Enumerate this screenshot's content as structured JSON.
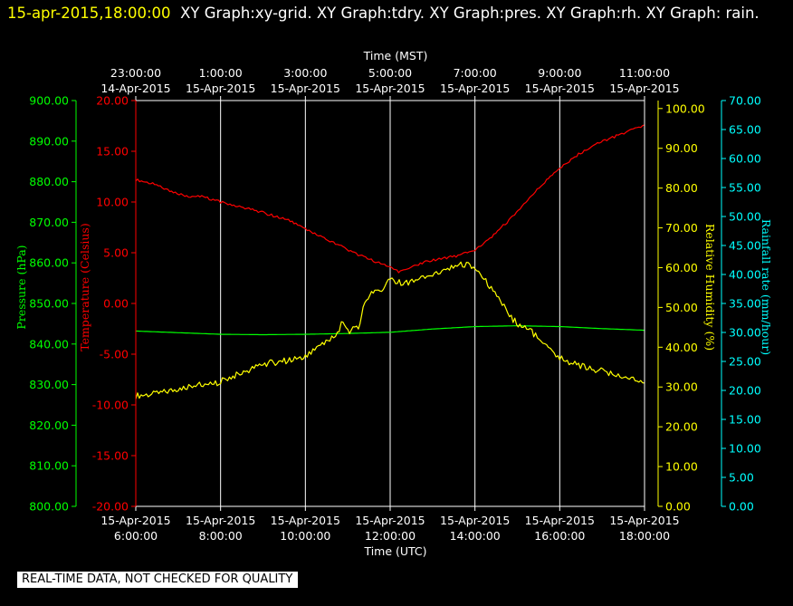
{
  "header": {
    "timestamp": "15-apr-2015,18:00:00",
    "graphs": "XY Graph:xy-grid.  XY Graph:tdry.  XY Graph:pres.  XY Graph:rh.  XY Graph: rain."
  },
  "footer_note": "REAL-TIME DATA, NOT CHECKED FOR QUALITY",
  "colors": {
    "background": "#000000",
    "temperature": "#ff0000",
    "pressure": "#00ff00",
    "humidity": "#ffff00",
    "rainfall": "#00ffff",
    "grid": "#ffffff"
  },
  "chart_data": {
    "type": "line",
    "grid": true,
    "x_top": {
      "label": "Time (MST)",
      "ticks": [
        [
          "23:00:00",
          "14-Apr-2015"
        ],
        [
          "1:00:00",
          "15-Apr-2015"
        ],
        [
          "3:00:00",
          "15-Apr-2015"
        ],
        [
          "5:00:00",
          "15-Apr-2015"
        ],
        [
          "7:00:00",
          "15-Apr-2015"
        ],
        [
          "9:00:00",
          "15-Apr-2015"
        ],
        [
          "11:00:00",
          "15-Apr-2015"
        ]
      ]
    },
    "x_bottom": {
      "label": "Time (UTC)",
      "ticks": [
        [
          "15-Apr-2015",
          "6:00:00"
        ],
        [
          "15-Apr-2015",
          "8:00:00"
        ],
        [
          "15-Apr-2015",
          "10:00:00"
        ],
        [
          "15-Apr-2015",
          "12:00:00"
        ],
        [
          "15-Apr-2015",
          "14:00:00"
        ],
        [
          "15-Apr-2015",
          "16:00:00"
        ],
        [
          "15-Apr-2015",
          "18:00:00"
        ]
      ],
      "tick_hours_utc": [
        6,
        8,
        10,
        12,
        14,
        16,
        18
      ],
      "range_hours_utc": [
        6,
        18
      ]
    },
    "axes": {
      "pressure": {
        "label": "Pressure (hPa)",
        "range": [
          800,
          900
        ],
        "ticks": [
          "800.00",
          "810.00",
          "820.00",
          "830.00",
          "840.00",
          "850.00",
          "860.00",
          "870.00",
          "880.00",
          "890.00",
          "900.00"
        ]
      },
      "temperature": {
        "label": "Temperature (Celsius)",
        "range": [
          -20,
          20
        ],
        "ticks": [
          "-20.00",
          "-15.00",
          "-10.00",
          "-5.00",
          "0.00",
          "5.00",
          "10.00",
          "15.00",
          "20.00"
        ]
      },
      "humidity": {
        "label": "Relative Humidity (%)",
        "range": [
          0,
          102
        ],
        "ticks": [
          "0.00",
          "10.00",
          "20.00",
          "30.00",
          "40.00",
          "50.00",
          "60.00",
          "70.00",
          "80.00",
          "90.00",
          "100.00"
        ]
      },
      "rainfall": {
        "label": "Rainfall rate (mm/hour)",
        "range": [
          0,
          70
        ],
        "ticks": [
          "0.00",
          "5.00",
          "10.00",
          "15.00",
          "20.00",
          "25.00",
          "30.00",
          "35.00",
          "40.00",
          "45.00",
          "50.00",
          "55.00",
          "60.00",
          "65.00",
          "70.00"
        ]
      }
    },
    "series": [
      {
        "name": "tdry",
        "axis": "temperature",
        "color": "#ff0000",
        "x_hours_utc": [
          6.0,
          6.4,
          6.8,
          7.2,
          7.6,
          8.0,
          8.4,
          8.8,
          9.2,
          9.6,
          10.0,
          10.4,
          10.8,
          11.2,
          11.6,
          12.0,
          12.2,
          12.4,
          12.8,
          13.2,
          13.6,
          14.0,
          14.4,
          14.8,
          15.2,
          15.6,
          16.0,
          16.4,
          16.8,
          17.2,
          17.6,
          18.0
        ],
        "values": [
          12.2,
          11.8,
          11.1,
          10.6,
          10.5,
          10.0,
          9.6,
          9.2,
          8.7,
          8.2,
          7.3,
          6.5,
          5.7,
          4.9,
          4.2,
          3.6,
          3.1,
          3.3,
          4.1,
          4.4,
          4.7,
          5.3,
          6.6,
          8.2,
          10.0,
          11.8,
          13.3,
          14.6,
          15.6,
          16.3,
          16.9,
          17.6
        ]
      },
      {
        "name": "pres",
        "axis": "pressure",
        "color": "#00ff00",
        "x_hours_utc": [
          6.0,
          7.0,
          8.0,
          9.0,
          10.0,
          11.0,
          12.0,
          13.0,
          14.0,
          15.0,
          16.0,
          17.0,
          18.0
        ],
        "values": [
          843.2,
          842.8,
          842.4,
          842.3,
          842.4,
          842.6,
          842.9,
          843.7,
          844.3,
          844.5,
          844.3,
          843.8,
          843.4
        ]
      },
      {
        "name": "rh",
        "axis": "humidity",
        "color": "#ffff00",
        "x_hours_utc": [
          6.0,
          6.5,
          7.0,
          7.5,
          7.8,
          8.0,
          8.5,
          9.0,
          9.5,
          10.0,
          10.4,
          10.8,
          10.85,
          11.0,
          11.25,
          11.4,
          11.6,
          11.8,
          12.0,
          12.3,
          12.6,
          13.0,
          13.4,
          13.8,
          14.0,
          14.3,
          14.6,
          14.9,
          15.1,
          15.3,
          15.6,
          16.0,
          16.4,
          16.8,
          17.2,
          17.6,
          18.0
        ],
        "values": [
          27.8,
          28.3,
          29.5,
          31.0,
          30.5,
          31.5,
          33.5,
          35.8,
          36.5,
          37.5,
          40.5,
          43.5,
          46.0,
          44.0,
          45.0,
          51.0,
          54.0,
          53.5,
          57.0,
          56.0,
          56.5,
          58.5,
          60.0,
          61.0,
          60.0,
          56.0,
          51.5,
          47.0,
          45.0,
          44.5,
          40.5,
          37.5,
          35.5,
          34.5,
          33.5,
          32.5,
          31.0
        ]
      },
      {
        "name": "rain",
        "axis": "rainfall",
        "color": "#00ffff",
        "x_hours_utc": [],
        "values": []
      }
    ]
  }
}
